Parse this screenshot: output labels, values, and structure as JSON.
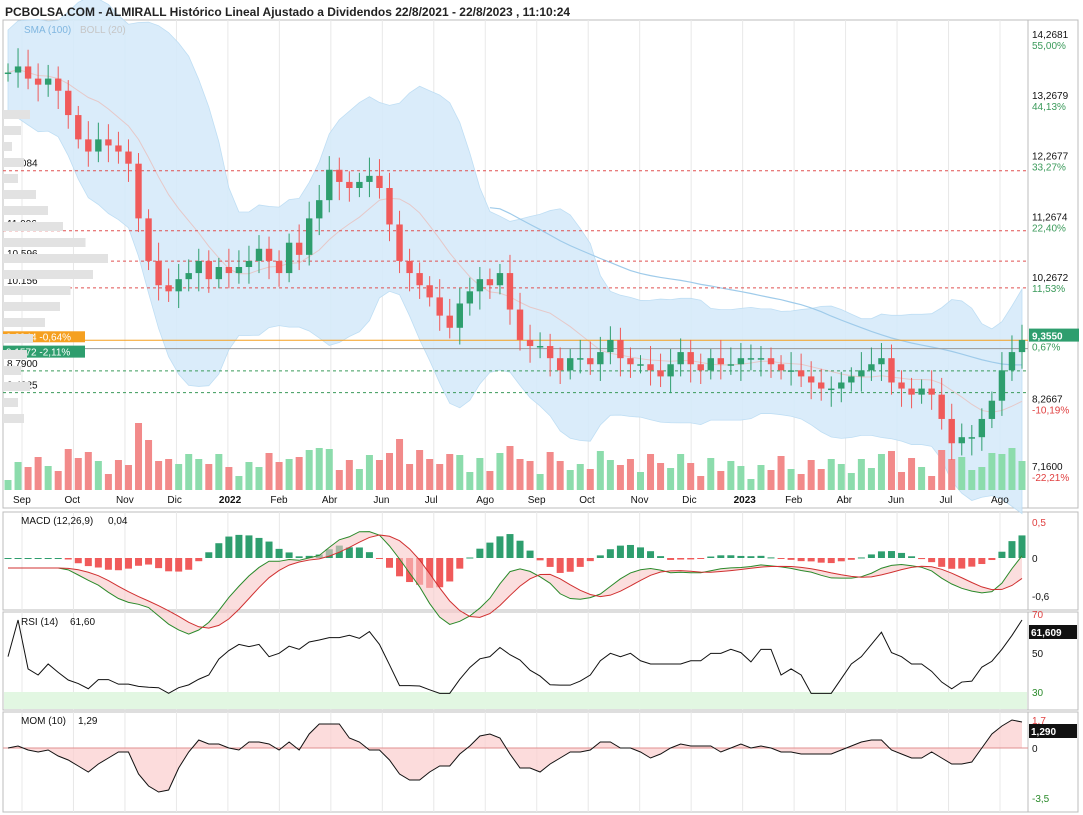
{
  "title": "PCBOLSA.COM - ALMIRALL Histórico Lineal Ajustado a Dividendos 22/8/2021 - 22/8/2023 , 11:10:24",
  "indicators_label": {
    "sma": "SMA (100)",
    "boll": "BOLL (20)"
  },
  "colors": {
    "up": "#2e9e6e",
    "down": "#f05a5a",
    "band": "#d6ebfa",
    "sma": "#9fcbea",
    "hline_red": "#e05050",
    "hline_green": "#3a9a5a",
    "current_green": "#2e9e6e",
    "orange": "#f5a020",
    "grid": "#e8e8e8",
    "panel_border": "#bcbcbc",
    "vol_up": "#8cdcac",
    "vol_down": "#f28a8a"
  },
  "right_axis": [
    {
      "price": "14,2681",
      "pct": "55,00%"
    },
    {
      "price": "13,2679",
      "pct": "44,13%"
    },
    {
      "price": "12,2677",
      "pct": "33,27%"
    },
    {
      "price": "11,2674",
      "pct": "22,40%"
    },
    {
      "price": "10,2672",
      "pct": "11,53%"
    },
    {
      "price": "9,3550",
      "pct": "0,67%"
    },
    {
      "price": "8,2667",
      "pct": "-10,19%"
    },
    {
      "price": "7,1600",
      "pct": "-22,21%"
    }
  ],
  "level_lines": [
    {
      "label": "12.084",
      "value": 12.084
    },
    {
      "label": "11.096",
      "value": 11.096
    },
    {
      "label": "10.596",
      "value": 10.596
    },
    {
      "label": "10.156",
      "value": 10.156
    },
    {
      "label": "8,7900",
      "value": 8.79
    },
    {
      "label": "8,4325",
      "value": 8.4325
    }
  ],
  "price_tags": {
    "top_label": "9,2944 -0,64%",
    "current_label": "9,1572 -2,11%"
  },
  "months": [
    "Sep",
    "Oct",
    "Nov",
    "Dic",
    "2022",
    "Feb",
    "Abr",
    "Jun",
    "Jul",
    "Ago",
    "Sep",
    "Oct",
    "Nov",
    "Dic",
    "2023",
    "Feb",
    "Abr",
    "Jun",
    "Jul",
    "Ago"
  ],
  "macd": {
    "label": "MACD (12,26,9)",
    "value": "0,04",
    "axis": [
      "0,5",
      "0",
      "-0,6"
    ]
  },
  "rsi": {
    "label": "RSI (14)",
    "value": "61,60",
    "badge": "61,609",
    "axis": [
      "70",
      "50",
      "30"
    ]
  },
  "mom": {
    "label": "MOM (10)",
    "value": "1,29",
    "badge": "1,290",
    "axis": [
      "1,7",
      "0",
      "-3,5"
    ]
  },
  "chart_data": {
    "type": "candlestick",
    "title": "ALMIRALL Histórico Lineal Ajustado a Dividendos 22/8/2021 - 22/8/2023",
    "period": "weekly",
    "ylim": [
      7.16,
      14.2681
    ],
    "close_weekly": [
      13.7,
      13.8,
      13.6,
      13.5,
      13.6,
      13.4,
      13.0,
      12.6,
      12.4,
      12.6,
      12.5,
      12.4,
      12.2,
      11.3,
      10.6,
      10.2,
      10.1,
      10.3,
      10.4,
      10.6,
      10.3,
      10.5,
      10.4,
      10.5,
      10.6,
      10.8,
      10.6,
      10.4,
      10.9,
      10.7,
      11.3,
      11.6,
      12.1,
      11.9,
      11.8,
      11.9,
      12.0,
      11.8,
      11.2,
      10.6,
      10.4,
      10.2,
      10.0,
      9.7,
      9.5,
      9.9,
      10.1,
      10.3,
      10.2,
      10.4,
      9.8,
      9.3,
      9.2,
      9.2,
      9.0,
      8.8,
      9.0,
      9.0,
      8.9,
      9.1,
      9.3,
      9.0,
      8.9,
      8.9,
      8.8,
      8.7,
      8.9,
      9.1,
      8.9,
      8.8,
      9.0,
      8.9,
      8.9,
      9.0,
      9.0,
      9.0,
      8.9,
      8.8,
      8.8,
      8.7,
      8.6,
      8.5,
      8.5,
      8.6,
      8.7,
      8.8,
      8.9,
      9.0,
      8.6,
      8.5,
      8.4,
      8.5,
      8.4,
      8.0,
      7.6,
      7.7,
      7.7,
      8.0,
      8.3,
      8.8,
      9.1,
      9.3
    ]
  }
}
